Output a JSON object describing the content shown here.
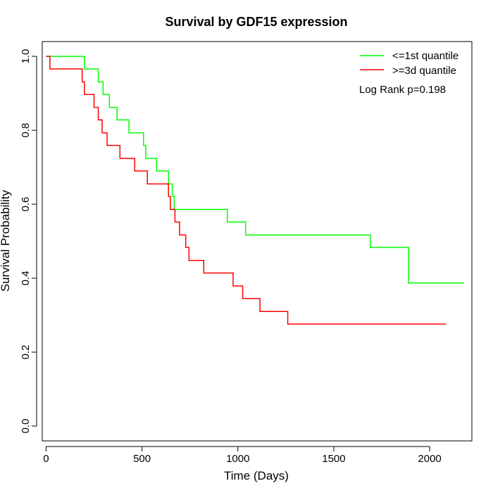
{
  "chart_data": {
    "type": "line",
    "title": "Survival by GDF15 expression",
    "xlabel": "Time (Days)",
    "ylabel": "Survival Probability",
    "xlim": [
      -20,
      2220
    ],
    "ylim": [
      -0.04,
      1.04
    ],
    "x_ticks": [
      0,
      500,
      1000,
      1500,
      2000
    ],
    "y_ticks": [
      0.0,
      0.2,
      0.4,
      0.6,
      0.8,
      1.0
    ],
    "x_tick_labels": [
      "0",
      "500",
      "1000",
      "1500",
      "2000"
    ],
    "y_tick_labels": [
      "0.0",
      "0.2",
      "0.4",
      "0.6",
      "0.8",
      "1.0"
    ],
    "grid": false,
    "legend_position": "top-right",
    "annotation": "Log Rank p=0.198",
    "series": [
      {
        "name": "<=1st quantile",
        "color": "#00ff00",
        "steps": [
          [
            0,
            1.0
          ],
          [
            200,
            0.966
          ],
          [
            272,
            0.931
          ],
          [
            297,
            0.897
          ],
          [
            330,
            0.862
          ],
          [
            370,
            0.828
          ],
          [
            432,
            0.793
          ],
          [
            508,
            0.759
          ],
          [
            520,
            0.724
          ],
          [
            576,
            0.69
          ],
          [
            638,
            0.655
          ],
          [
            658,
            0.621
          ],
          [
            668,
            0.586
          ],
          [
            945,
            0.552
          ],
          [
            1040,
            0.517
          ],
          [
            1690,
            0.483
          ],
          [
            1890,
            0.387
          ],
          [
            2180,
            0.387
          ]
        ]
      },
      {
        "name": ">=3d quantile",
        "color": "#ff0000",
        "steps": [
          [
            0,
            1.0
          ],
          [
            20,
            0.966
          ],
          [
            188,
            0.931
          ],
          [
            200,
            0.897
          ],
          [
            250,
            0.862
          ],
          [
            272,
            0.828
          ],
          [
            292,
            0.793
          ],
          [
            318,
            0.759
          ],
          [
            385,
            0.724
          ],
          [
            462,
            0.69
          ],
          [
            528,
            0.655
          ],
          [
            638,
            0.621
          ],
          [
            648,
            0.586
          ],
          [
            672,
            0.552
          ],
          [
            696,
            0.517
          ],
          [
            728,
            0.483
          ],
          [
            745,
            0.448
          ],
          [
            822,
            0.414
          ],
          [
            975,
            0.379
          ],
          [
            1025,
            0.345
          ],
          [
            1115,
            0.31
          ],
          [
            1260,
            0.276
          ],
          [
            2085,
            0.276
          ]
        ]
      }
    ]
  }
}
